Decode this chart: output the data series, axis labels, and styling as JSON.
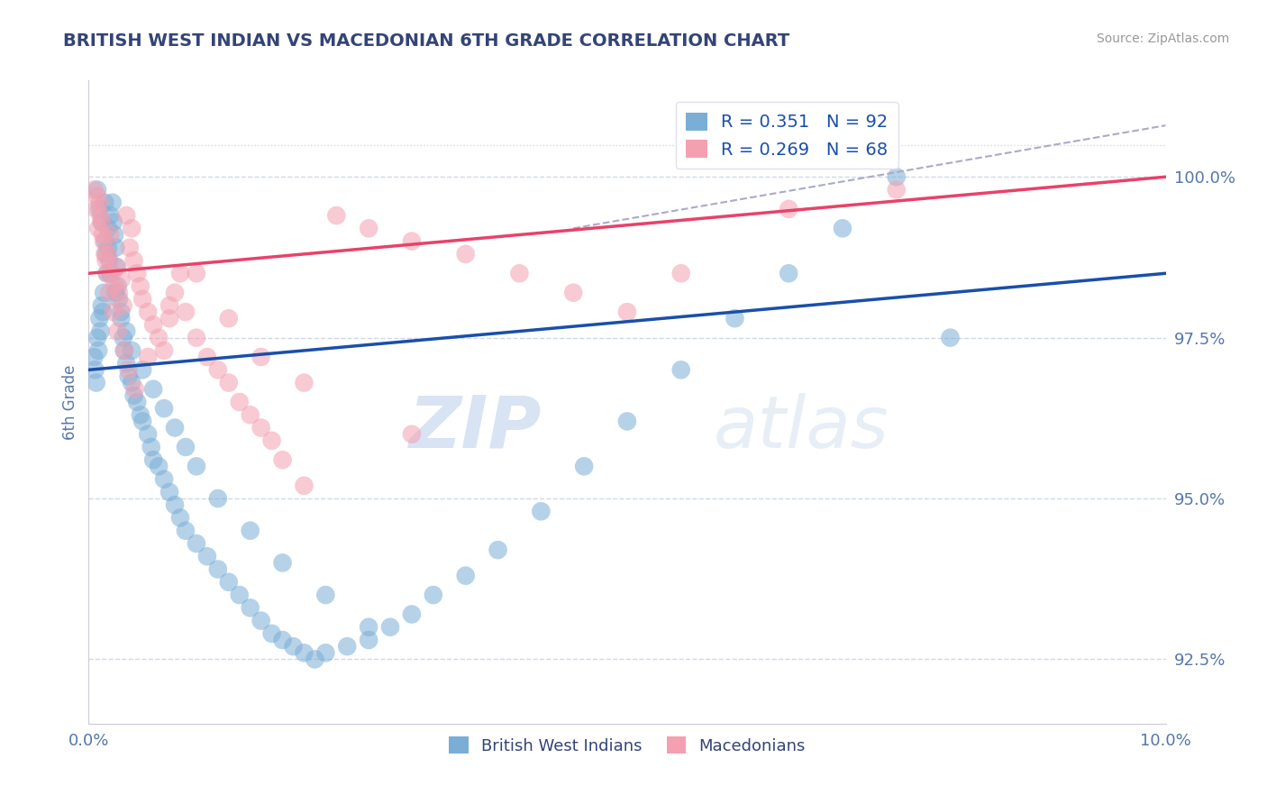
{
  "title": "BRITISH WEST INDIAN VS MACEDONIAN 6TH GRADE CORRELATION CHART",
  "source": "Source: ZipAtlas.com",
  "ylabel": "6th Grade",
  "xlim": [
    0.0,
    10.0
  ],
  "ylim": [
    91.5,
    101.5
  ],
  "yticks": [
    92.5,
    95.0,
    97.5,
    100.0
  ],
  "ytick_labels": [
    "92.5%",
    "95.0%",
    "97.5%",
    "100.0%"
  ],
  "legend_blue_label": "R = 0.351   N = 92",
  "legend_pink_label": "R = 0.269   N = 68",
  "legend_bottom_blue": "British West Indians",
  "legend_bottom_pink": "Macedonians",
  "blue_color": "#7aaed6",
  "pink_color": "#f4a0b0",
  "blue_line_color": "#1a4faa",
  "pink_line_color": "#e8426a",
  "title_color": "#334477",
  "axis_label_color": "#5577aa",
  "tick_color": "#5577aa",
  "grid_color": "#d0d8e8",
  "background_color": "#ffffff",
  "watermark_zip": "ZIP",
  "watermark_atlas": "atlas",
  "blue_line_x0": 0.0,
  "blue_line_y0": 97.0,
  "blue_line_x1": 10.0,
  "blue_line_y1": 98.5,
  "pink_line_x0": 0.0,
  "pink_line_y0": 98.5,
  "pink_line_x1": 10.0,
  "pink_line_y1": 100.0,
  "dashed_line_x0": 4.5,
  "dashed_line_y0": 99.2,
  "dashed_line_x1": 10.0,
  "dashed_line_y1": 100.8,
  "blue_scatter_x": [
    0.05,
    0.06,
    0.07,
    0.08,
    0.09,
    0.1,
    0.11,
    0.12,
    0.13,
    0.14,
    0.15,
    0.16,
    0.17,
    0.18,
    0.19,
    0.2,
    0.22,
    0.23,
    0.24,
    0.25,
    0.26,
    0.27,
    0.28,
    0.3,
    0.32,
    0.33,
    0.35,
    0.37,
    0.4,
    0.42,
    0.45,
    0.48,
    0.5,
    0.55,
    0.58,
    0.6,
    0.65,
    0.7,
    0.75,
    0.8,
    0.85,
    0.9,
    1.0,
    1.1,
    1.2,
    1.3,
    1.4,
    1.5,
    1.6,
    1.7,
    1.8,
    1.9,
    2.0,
    2.1,
    2.2,
    2.4,
    2.6,
    2.8,
    3.0,
    3.2,
    3.5,
    3.8,
    4.2,
    4.6,
    5.0,
    5.5,
    6.0,
    6.5,
    7.0,
    7.5,
    8.0,
    0.08,
    0.1,
    0.12,
    0.15,
    0.18,
    0.2,
    0.25,
    0.3,
    0.35,
    0.4,
    0.5,
    0.6,
    0.7,
    0.8,
    0.9,
    1.0,
    1.2,
    1.5,
    1.8,
    2.2,
    2.6
  ],
  "blue_scatter_y": [
    97.2,
    97.0,
    96.8,
    97.5,
    97.3,
    97.8,
    97.6,
    98.0,
    97.9,
    98.2,
    99.0,
    98.8,
    98.5,
    99.2,
    98.7,
    99.4,
    99.6,
    99.3,
    99.1,
    98.9,
    98.6,
    98.3,
    98.1,
    97.8,
    97.5,
    97.3,
    97.1,
    96.9,
    96.8,
    96.6,
    96.5,
    96.3,
    96.2,
    96.0,
    95.8,
    95.6,
    95.5,
    95.3,
    95.1,
    94.9,
    94.7,
    94.5,
    94.3,
    94.1,
    93.9,
    93.7,
    93.5,
    93.3,
    93.1,
    92.9,
    92.8,
    92.7,
    92.6,
    92.5,
    92.6,
    92.7,
    92.8,
    93.0,
    93.2,
    93.5,
    93.8,
    94.2,
    94.8,
    95.5,
    96.2,
    97.0,
    97.8,
    98.5,
    99.2,
    100.0,
    97.5,
    99.8,
    99.5,
    99.3,
    99.6,
    98.9,
    98.5,
    98.2,
    97.9,
    97.6,
    97.3,
    97.0,
    96.7,
    96.4,
    96.1,
    95.8,
    95.5,
    95.0,
    94.5,
    94.0,
    93.5,
    93.0
  ],
  "pink_scatter_x": [
    0.05,
    0.07,
    0.09,
    0.1,
    0.12,
    0.14,
    0.16,
    0.18,
    0.2,
    0.22,
    0.24,
    0.26,
    0.28,
    0.3,
    0.32,
    0.35,
    0.38,
    0.4,
    0.42,
    0.45,
    0.48,
    0.5,
    0.55,
    0.6,
    0.65,
    0.7,
    0.75,
    0.8,
    0.85,
    0.9,
    1.0,
    1.1,
    1.2,
    1.3,
    1.4,
    1.5,
    1.6,
    1.7,
    1.8,
    2.0,
    2.3,
    2.6,
    3.0,
    3.5,
    4.0,
    4.5,
    5.0,
    5.5,
    6.5,
    7.5,
    0.08,
    0.11,
    0.13,
    0.15,
    0.17,
    0.19,
    0.23,
    0.27,
    0.33,
    0.37,
    0.43,
    0.55,
    0.75,
    1.0,
    1.3,
    1.6,
    2.0,
    3.0
  ],
  "pink_scatter_y": [
    99.8,
    99.5,
    99.2,
    99.6,
    99.3,
    99.0,
    98.7,
    98.8,
    99.1,
    98.5,
    98.3,
    98.6,
    98.2,
    98.4,
    98.0,
    99.4,
    98.9,
    99.2,
    98.7,
    98.5,
    98.3,
    98.1,
    97.9,
    97.7,
    97.5,
    97.3,
    97.8,
    98.2,
    98.5,
    97.9,
    97.5,
    97.2,
    97.0,
    96.8,
    96.5,
    96.3,
    96.1,
    95.9,
    95.6,
    95.2,
    99.4,
    99.2,
    99.0,
    98.8,
    98.5,
    98.2,
    97.9,
    98.5,
    99.5,
    99.8,
    99.7,
    99.4,
    99.1,
    98.8,
    98.5,
    98.2,
    97.9,
    97.6,
    97.3,
    97.0,
    96.7,
    97.2,
    98.0,
    98.5,
    97.8,
    97.2,
    96.8,
    96.0
  ]
}
